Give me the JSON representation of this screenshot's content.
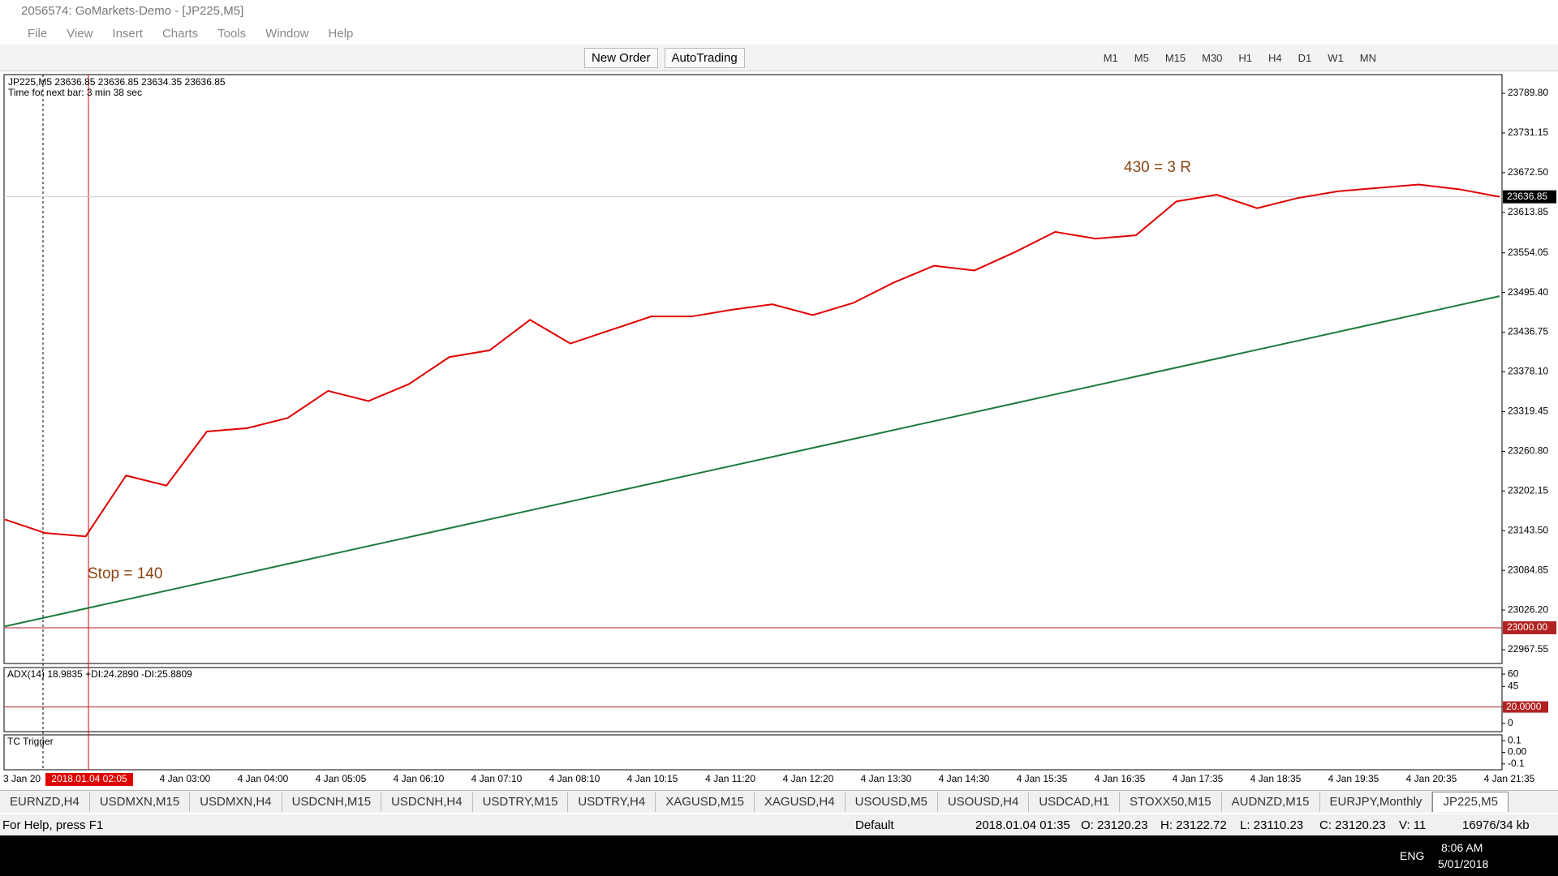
{
  "window": {
    "title": "2056574: GoMarkets-Demo - [JP225,M5]"
  },
  "menu": [
    "File",
    "View",
    "Insert",
    "Charts",
    "Tools",
    "Window",
    "Help"
  ],
  "toolbar": {
    "new_order": "New Order",
    "autotrading": "AutoTrading",
    "timeframes": [
      "M1",
      "M5",
      "M15",
      "M30",
      "H1",
      "H4",
      "D1",
      "W1",
      "MN"
    ]
  },
  "chart": {
    "info": "JP225,M5  23636.85 23636.85 23634.35 23636.85",
    "timer": "Time for next bar: 3 min 38 sec",
    "annotations": [
      "430 = 3 R",
      "Stop = 140"
    ],
    "ylim": [
      22947.2,
      23817.4
    ],
    "yticks": [
      {
        "value": 23789.8,
        "label": "23789.80"
      },
      {
        "value": 23731.15,
        "label": "23731.15"
      },
      {
        "value": 23672.5,
        "label": "23672.50"
      },
      {
        "value": 23613.85,
        "label": "23613.85"
      },
      {
        "value": 23554.05,
        "label": "23554.05"
      },
      {
        "value": 23495.4,
        "label": "23495.40"
      },
      {
        "value": 23436.75,
        "label": "23436.75"
      },
      {
        "value": 23378.1,
        "label": "23378.10"
      },
      {
        "value": 23319.45,
        "label": "23319.45"
      },
      {
        "value": 23260.8,
        "label": "23260.80"
      },
      {
        "value": 23202.15,
        "label": "23202.15"
      },
      {
        "value": 23143.5,
        "label": "23143.50"
      },
      {
        "value": 23084.85,
        "label": "23084.85"
      },
      {
        "value": 23026.2,
        "label": "23026.20"
      },
      {
        "value": 22967.55,
        "label": "22967.55"
      }
    ],
    "close": [
      23160,
      23140,
      23135,
      23225,
      23210,
      23290,
      23295,
      23310,
      23350,
      23335,
      23360,
      23400,
      23410,
      23455,
      23420,
      23440,
      23460,
      23460,
      23470,
      23478,
      23462,
      23480,
      23510,
      23535,
      23528,
      23555,
      23585,
      23575,
      23580,
      23630,
      23640,
      23620,
      23635,
      23645,
      23650,
      23655,
      23648,
      23636.85
    ],
    "long_ma": [
      23002,
      23490
    ],
    "current_price": {
      "value": 23636.85,
      "label": "23636.85"
    },
    "level": {
      "value": 23000,
      "label": "23000.00"
    },
    "first_time": "3 Jan 20",
    "cursor_time": "2018.01.04 02:05",
    "time_labels": [
      "4 Jan 03:00",
      "4 Jan 04:00",
      "4 Jan 05:05",
      "4 Jan 06:10",
      "4 Jan 07:10",
      "4 Jan 08:10",
      "4 Jan 10:15",
      "4 Jan 11:20",
      "4 Jan 12:20",
      "4 Jan 13:30",
      "4 Jan 14:30",
      "4 Jan 15:35",
      "4 Jan 16:35",
      "4 Jan 17:35",
      "4 Jan 18:35",
      "4 Jan 19:35",
      "4 Jan 20:35",
      "4 Jan 21:35"
    ]
  },
  "adx": {
    "label": "ADX(14) 18.9835 +DI:24.2890 -DI:25.8809",
    "ylim": [
      -10,
      68
    ],
    "yticks": [
      60,
      45,
      {
        "value": 20,
        "label": "20.0000"
      },
      0
    ]
  },
  "tc": {
    "label": "TC Trigger",
    "ylim": [
      -0.15,
      0.15
    ],
    "yticks": [
      0.1,
      {
        "value": 0,
        "label": "0.00"
      },
      -0.1
    ]
  },
  "tabs": [
    "EURNZD,H4",
    "USDMXN,M15",
    "USDMXN,H4",
    "USDCNH,M15",
    "USDCNH,H4",
    "USDTRY,M15",
    "USDTRY,H4",
    "XAGUSD,M15",
    "XAGUSD,H4",
    "USOUSD,M5",
    "USOUSD,H4",
    "USDCAD,H1",
    "STOXX50,M15",
    "AUDNZD,M15",
    "EURJPY,Monthly",
    "JP225,M5"
  ],
  "status": {
    "help": "For Help, press F1",
    "profile": "Default",
    "time": "2018.01.04 01:35",
    "open": "O: 23120.23",
    "high": "H: 23122.72",
    "low": "L: 23110.23",
    "close": "C: 23120.23",
    "volume": "V: 11",
    "traffic": "16976/34 kb"
  },
  "taskbar": {
    "lang": "ENG",
    "clock": "8:06 AM",
    "date": "5/01/2018"
  }
}
